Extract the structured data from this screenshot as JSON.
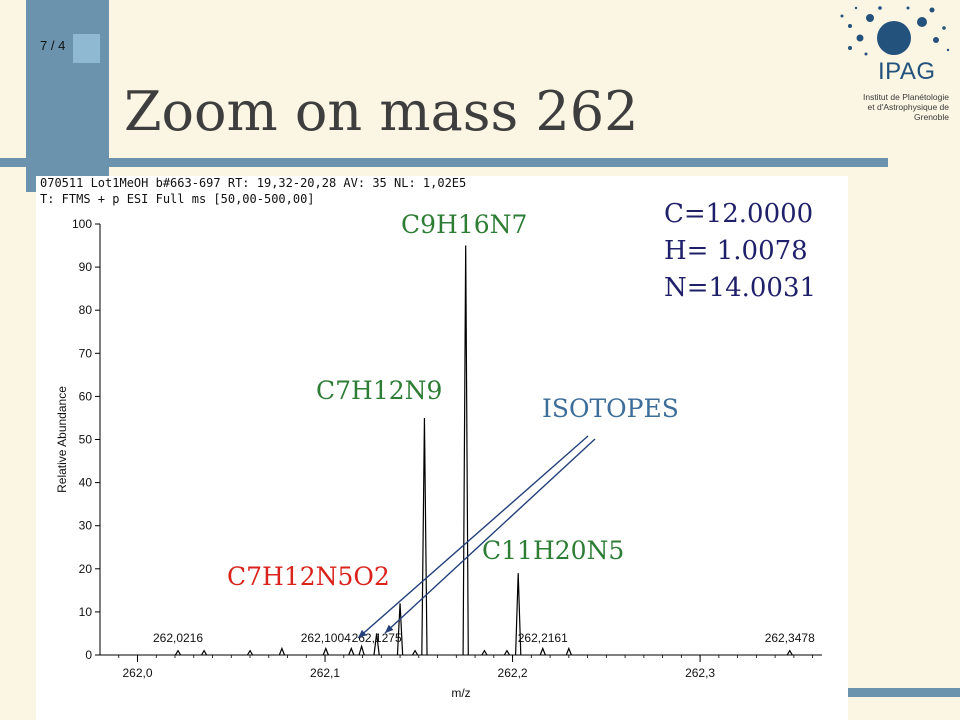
{
  "slide": {
    "number": "7 / 4",
    "title": "Zoom on mass 262"
  },
  "logo": {
    "name": "IPAG",
    "institute": "Institut de Planétologie et d'Astrophysique de Grenoble"
  },
  "spectrum_header": {
    "line1": "070511  Lot1MeOH  b#663-697  RT: 19,32-20,28  AV: 35  NL: 1,02E5",
    "line2": "T: FTMS + p ESI Full ms [50,00-500,00]"
  },
  "atomic_masses": {
    "c": "C=12.0000",
    "h": "H= 1.0078",
    "n": "N=14.0031"
  },
  "annotations": {
    "c9h16n7": "C9H16N7",
    "c7h12n9": "C7H12N9",
    "c11h20n5": "C11H20N5",
    "c7h12n5o2": "C7H12N5O2",
    "isotopes": "ISOTOPES"
  },
  "colors": {
    "formula_green": "#2d7d34",
    "formula_red": "#d9231c",
    "isotopes_blue": "#3d6e9a",
    "accent_bar": "#6b93ad"
  },
  "chart_data": {
    "type": "line",
    "xlabel": "m/z",
    "ylabel": "Relative Abundance",
    "xlim": [
      261.98,
      262.365
    ],
    "ylim": [
      0,
      100
    ],
    "x_ticks": [
      "262,0",
      "262,1",
      "262,2",
      "262,3"
    ],
    "y_ticks": [
      0,
      10,
      20,
      30,
      40,
      50,
      60,
      70,
      80,
      90,
      100
    ],
    "peaks": [
      {
        "x": 262.0216,
        "y": 1.0
      },
      {
        "x": 262.0355,
        "y": 1.0
      },
      {
        "x": 262.06,
        "y": 1.0
      },
      {
        "x": 262.077,
        "y": 1.5
      },
      {
        "x": 262.1004,
        "y": 1.5
      },
      {
        "x": 262.114,
        "y": 1.5
      },
      {
        "x": 262.1195,
        "y": 2.0
      },
      {
        "x": 262.1275,
        "y": 5.0
      },
      {
        "x": 262.14,
        "y": 12.0
      },
      {
        "x": 262.148,
        "y": 1.0
      },
      {
        "x": 262.153,
        "y": 55.0
      },
      {
        "x": 262.175,
        "y": 95.0
      },
      {
        "x": 262.185,
        "y": 1.0
      },
      {
        "x": 262.197,
        "y": 1.0
      },
      {
        "x": 262.203,
        "y": 19.0
      },
      {
        "x": 262.2161,
        "y": 1.5
      },
      {
        "x": 262.23,
        "y": 1.5
      },
      {
        "x": 262.3478,
        "y": 1.0
      }
    ],
    "peak_labels": [
      {
        "x": 262.0216,
        "text": "262,0216"
      },
      {
        "x": 262.1004,
        "text": "262,1004"
      },
      {
        "x": 262.1275,
        "text": "262,1275"
      },
      {
        "x": 262.2161,
        "text": "262,2161"
      },
      {
        "x": 262.3478,
        "text": "262,3478"
      }
    ]
  }
}
